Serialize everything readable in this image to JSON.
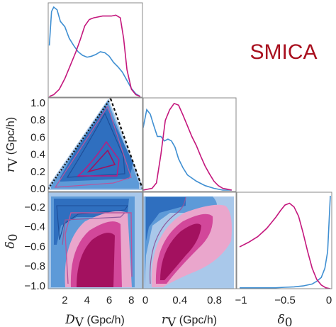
{
  "label": "SMICA",
  "colors": {
    "blue_dark": "#2f6fbf",
    "blue_mid": "#5d9ad8",
    "blue_light": "#a9c8ea",
    "blue_line": "#3f8fd2",
    "magenta_dark": "#a3115f",
    "magenta_mid": "#d2479a",
    "magenta_light": "#eaa6cc",
    "magenta_line": "#c4177d",
    "guide_line": "#111111"
  },
  "axes": {
    "dv": {
      "label_main": "D",
      "label_sub": "V",
      "label_unit": " (Gpc/h)",
      "range": [
        0.5,
        9
      ],
      "ticks": [
        "2",
        "4",
        "6",
        "8"
      ],
      "tick_values": [
        2,
        4,
        6,
        8
      ]
    },
    "rv": {
      "label_main": "r",
      "label_sub": "V",
      "label_unit": " (Gpc/h)",
      "range": [
        0,
        1.05
      ],
      "ticks_x": [
        "0",
        "0.4",
        "0.8"
      ],
      "tick_values_x": [
        0,
        0.4,
        0.8
      ],
      "ticks_y": [
        "0.0",
        "0.2",
        "0.4",
        "0.6",
        "0.8",
        "1.0"
      ],
      "tick_values_y": [
        0,
        0.2,
        0.4,
        0.6,
        0.8,
        1.0
      ]
    },
    "delta": {
      "label_main": "δ",
      "label_sub": "0",
      "range": [
        -1.03,
        -0.05
      ],
      "ticks_y": [
        "−0.2",
        "−0.4",
        "−0.6",
        "−0.8",
        "−1.0"
      ],
      "tick_values_y": [
        -0.2,
        -0.4,
        -0.6,
        -0.8,
        -1.0
      ],
      "ticks_x": [
        "−1",
        "−0.5",
        "0"
      ],
      "tick_values_x": [
        -1,
        -0.5,
        0
      ],
      "range_x": [
        -1.0,
        0.0
      ]
    }
  },
  "chart_data": [
    {
      "type": "line",
      "panel": "D_V marginal",
      "series": [
        {
          "x": [
            0.6,
            0.8,
            1.0,
            1.3,
            1.6,
            2.0,
            2.4,
            2.8,
            3.2,
            3.6,
            4.0,
            4.4,
            4.8,
            5.2,
            5.6,
            6.0,
            6.4,
            6.8,
            7.2,
            7.6,
            8.0,
            8.4,
            8.8
          ],
          "y": [
            0.57,
            0.95,
            1.0,
            0.97,
            0.84,
            0.78,
            0.65,
            0.57,
            0.5,
            0.46,
            0.44,
            0.45,
            0.47,
            0.5,
            0.49,
            0.45,
            0.38,
            0.33,
            0.27,
            0.18,
            0.09,
            0.03,
            0.0
          ]
        },
        {
          "x": [
            0.6,
            1.0,
            1.5,
            2.0,
            2.5,
            3.0,
            3.4,
            3.8,
            4.2,
            4.6,
            5.0,
            5.4,
            5.8,
            6.2,
            6.6,
            7.0,
            7.3,
            7.6,
            8.0,
            8.4,
            8.8
          ],
          "y": [
            0.0,
            0.02,
            0.08,
            0.2,
            0.35,
            0.5,
            0.64,
            0.79,
            0.86,
            0.88,
            0.89,
            0.9,
            0.9,
            0.9,
            0.91,
            0.88,
            0.65,
            0.3,
            0.08,
            0.02,
            0.0
          ]
        }
      ]
    },
    {
      "type": "line",
      "panel": "r_V marginal",
      "series": [
        {
          "x": [
            0.0,
            0.04,
            0.08,
            0.12,
            0.16,
            0.2,
            0.24,
            0.28,
            0.32,
            0.36,
            0.4,
            0.45,
            0.5,
            0.6,
            0.7,
            0.8,
            0.9,
            1.0
          ],
          "y": [
            0.7,
            0.9,
            0.85,
            0.72,
            0.6,
            0.6,
            0.55,
            0.57,
            0.55,
            0.48,
            0.35,
            0.25,
            0.17,
            0.1,
            0.05,
            0.02,
            0.0,
            0.0
          ]
        },
        {
          "x": [
            0.0,
            0.1,
            0.15,
            0.2,
            0.25,
            0.3,
            0.35,
            0.4,
            0.45,
            0.5,
            0.55,
            0.6,
            0.65,
            0.7,
            0.75,
            0.8,
            0.85,
            0.9,
            0.95,
            1.0
          ],
          "y": [
            0.0,
            0.02,
            0.08,
            0.4,
            0.78,
            0.9,
            0.97,
            0.95,
            0.84,
            0.72,
            0.6,
            0.5,
            0.38,
            0.27,
            0.18,
            0.1,
            0.05,
            0.02,
            0.01,
            0.0
          ]
        }
      ]
    },
    {
      "type": "line",
      "panel": "delta_0 marginal",
      "series": [
        {
          "x": [
            -1.0,
            -0.9,
            -0.8,
            -0.7,
            -0.6,
            -0.5,
            -0.4,
            -0.3,
            -0.2,
            -0.15,
            -0.1,
            -0.06,
            -0.03,
            0.0
          ],
          "y": [
            0.01,
            0.01,
            0.01,
            0.01,
            0.01,
            0.015,
            0.02,
            0.03,
            0.05,
            0.08,
            0.12,
            0.22,
            0.4,
            1.0
          ]
        },
        {
          "x": [
            -1.0,
            -0.9,
            -0.8,
            -0.7,
            -0.6,
            -0.55,
            -0.5,
            -0.45,
            -0.4,
            -0.35,
            -0.3,
            -0.25,
            -0.2,
            -0.15,
            -0.1,
            -0.05,
            0.0
          ],
          "y": [
            0.45,
            0.5,
            0.56,
            0.65,
            0.77,
            0.84,
            0.9,
            0.92,
            0.88,
            0.78,
            0.6,
            0.4,
            0.22,
            0.1,
            0.04,
            0.01,
            0.0
          ]
        }
      ]
    },
    {
      "type": "scatter",
      "panel": "r_V vs D_V contours",
      "annotations": [
        "bounding lines: r_V = D_V / 6.2 (dotted) and right boundary (dashed)"
      ]
    },
    {
      "type": "scatter",
      "panel": "delta_0 vs D_V contours"
    },
    {
      "type": "scatter",
      "panel": "delta_0 vs r_V contours"
    }
  ]
}
